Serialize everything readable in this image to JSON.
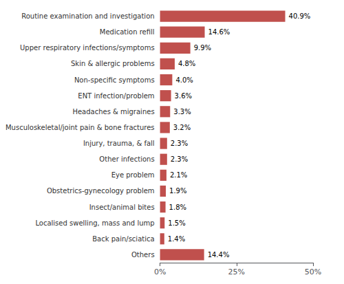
{
  "chart_data": {
    "type": "bar",
    "orientation": "horizontal",
    "categories": [
      "Routine examination and investigation",
      "Medication refill",
      "Upper respiratory infections/symptoms",
      "Skin & allergic problems",
      "Non-specific symptoms",
      "ENT infection/problem",
      "Headaches & migraines",
      "Musculoskeletal/joint pain & bone fractures",
      "Injury, trauma, & fall",
      "Other infections",
      "Eye problem",
      "Obstetrics-gynecology problem",
      "Insect/animal bites",
      "Localised swelling, mass and lump",
      "Back pain/sciatica",
      "Others"
    ],
    "values": [
      40.9,
      14.6,
      9.9,
      4.8,
      4.0,
      3.6,
      3.3,
      3.2,
      2.3,
      2.3,
      2.1,
      1.9,
      1.8,
      1.5,
      1.4,
      14.4
    ],
    "value_labels": [
      "40.9%",
      "14.6%",
      "9.9%",
      "4.8%",
      "4.0%",
      "3.6%",
      "3.3%",
      "3.2%",
      "2.3%",
      "2.3%",
      "2.1%",
      "1.9%",
      "1.8%",
      "1.5%",
      "1.4%",
      "14.4%"
    ],
    "color": "#c0504d",
    "xlim": [
      0,
      50
    ],
    "xticks": [
      {
        "value": 0,
        "label": "0%"
      },
      {
        "value": 25,
        "label": "25%"
      },
      {
        "value": 50,
        "label": "50%"
      }
    ],
    "grid": false,
    "data_labels": true
  }
}
